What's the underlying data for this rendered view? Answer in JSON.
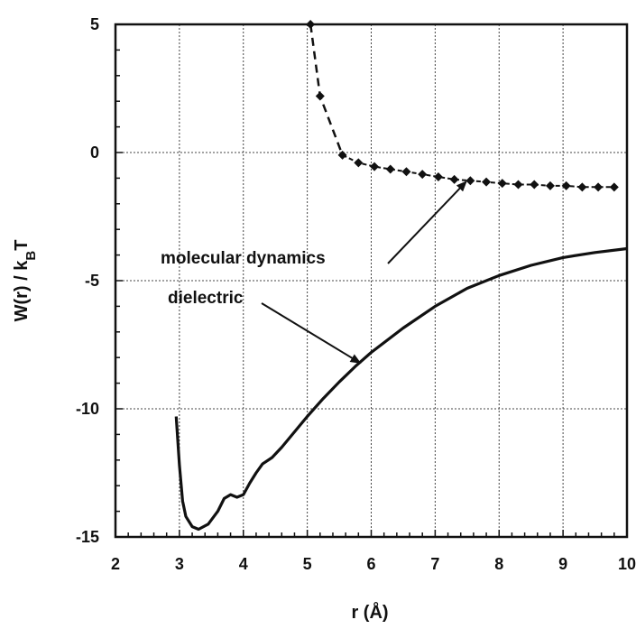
{
  "chart_data": {
    "type": "line",
    "title": "",
    "xlabel": "r (Å)",
    "ylabel": "W(r) / k",
    "ylabel_sub": "B",
    "ylabel_tail": "T",
    "xlim": [
      2,
      10
    ],
    "ylim": [
      -15,
      5
    ],
    "x_ticks": [
      2,
      3,
      4,
      5,
      6,
      7,
      8,
      9,
      10
    ],
    "y_ticks": [
      5,
      0,
      -5,
      -10,
      -15
    ],
    "grid": true,
    "series": [
      {
        "name": "molecular dynamics",
        "style": "dashed-diamond",
        "points": [
          [
            5.05,
            5.0
          ],
          [
            5.2,
            2.2
          ],
          [
            5.55,
            -0.1
          ],
          [
            5.8,
            -0.4
          ],
          [
            6.05,
            -0.55
          ],
          [
            6.3,
            -0.65
          ],
          [
            6.55,
            -0.75
          ],
          [
            6.8,
            -0.85
          ],
          [
            7.05,
            -0.95
          ],
          [
            7.3,
            -1.05
          ],
          [
            7.55,
            -1.1
          ],
          [
            7.8,
            -1.15
          ],
          [
            8.05,
            -1.2
          ],
          [
            8.3,
            -1.25
          ],
          [
            8.55,
            -1.25
          ],
          [
            8.8,
            -1.3
          ],
          [
            9.05,
            -1.3
          ],
          [
            9.3,
            -1.35
          ],
          [
            9.55,
            -1.35
          ],
          [
            9.8,
            -1.35
          ]
        ]
      },
      {
        "name": "dielectric",
        "style": "solid",
        "points": [
          [
            2.95,
            -10.3
          ],
          [
            3.0,
            -12.2
          ],
          [
            3.05,
            -13.6
          ],
          [
            3.1,
            -14.2
          ],
          [
            3.2,
            -14.6
          ],
          [
            3.3,
            -14.7
          ],
          [
            3.45,
            -14.5
          ],
          [
            3.6,
            -14.0
          ],
          [
            3.7,
            -13.5
          ],
          [
            3.8,
            -13.35
          ],
          [
            3.9,
            -13.45
          ],
          [
            4.0,
            -13.35
          ],
          [
            4.1,
            -12.9
          ],
          [
            4.2,
            -12.5
          ],
          [
            4.3,
            -12.15
          ],
          [
            4.45,
            -11.9
          ],
          [
            4.6,
            -11.5
          ],
          [
            4.8,
            -10.9
          ],
          [
            5.0,
            -10.3
          ],
          [
            5.25,
            -9.6
          ],
          [
            5.5,
            -8.95
          ],
          [
            5.75,
            -8.35
          ],
          [
            6.0,
            -7.8
          ],
          [
            6.5,
            -6.85
          ],
          [
            7.0,
            -6.0
          ],
          [
            7.5,
            -5.3
          ],
          [
            8.0,
            -4.8
          ],
          [
            8.5,
            -4.4
          ],
          [
            9.0,
            -4.1
          ],
          [
            9.5,
            -3.9
          ],
          [
            10.0,
            -3.75
          ]
        ]
      }
    ],
    "annotations": [
      {
        "text": "molecular dynamics",
        "arrow_to_series": "molecular dynamics"
      },
      {
        "text": "dielectric",
        "arrow_to_series": "dielectric"
      }
    ]
  }
}
